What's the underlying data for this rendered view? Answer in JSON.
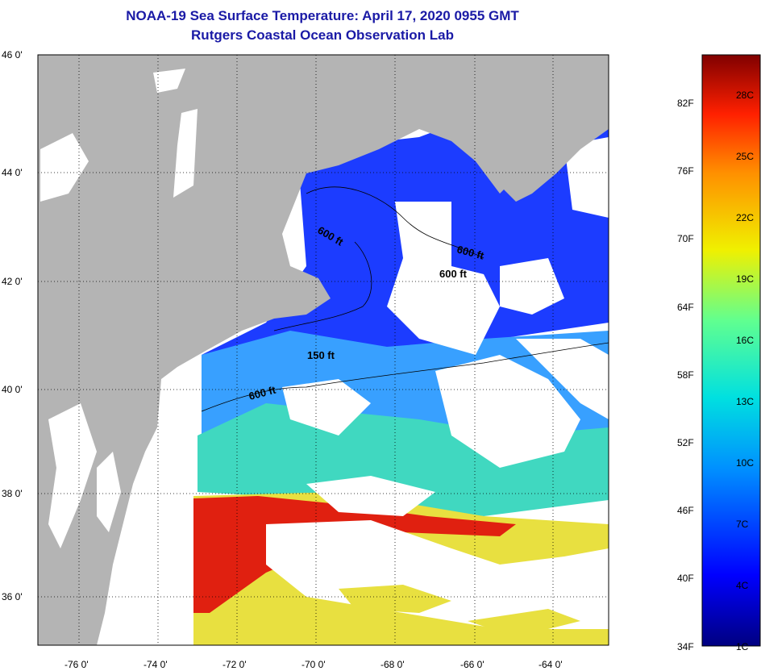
{
  "title_line1": "NOAA-19 Sea Surface Temperature:  April 17, 2020 0955 GMT",
  "title_line2": "Rutgers Coastal Ocean Observation Lab",
  "latitude_labels": [
    "46 0'",
    "44 0'",
    "42 0'",
    "40 0'",
    "38 0'",
    "36 0'"
  ],
  "longitude_labels": [
    "-76 0'",
    "-74 0'",
    "-72 0'",
    "-70 0'",
    "-68 0'",
    "-66 0'",
    "-64 0'"
  ],
  "contour_labels": [
    "600 ft",
    "600 ft",
    "600 ft",
    "150 ft",
    "600 ft"
  ],
  "colorbar": {
    "fahrenheit_labels": [
      "82F",
      "76F",
      "70F",
      "64F",
      "58F",
      "52F",
      "46F",
      "40F",
      "34F"
    ],
    "celsius_labels": [
      "28C",
      "25C",
      "22C",
      "19C",
      "16C",
      "13C",
      "10C",
      "7C",
      "4C",
      "1C"
    ]
  },
  "colors": {
    "land": "#b4b4b4",
    "cold": "#1c3cff",
    "cool": "#38a0ff",
    "mild": "#40d8c0",
    "warm": "#e8e040",
    "hot": "#e02010",
    "cloud": "#ffffff"
  }
}
